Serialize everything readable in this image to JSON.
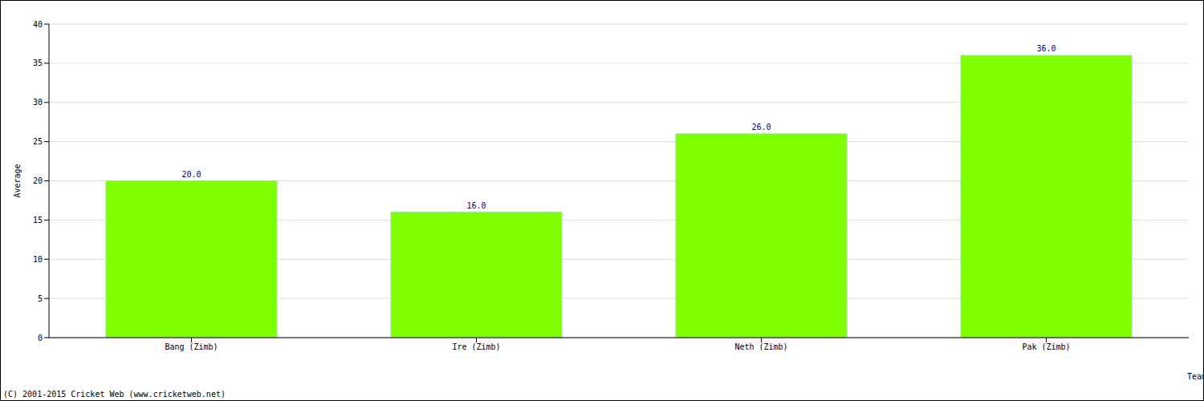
{
  "chart_data": {
    "type": "bar",
    "categories": [
      "Bang (Zimb)",
      "Ire (Zimb)",
      "Neth (Zimb)",
      "Pak (Zimb)"
    ],
    "values": [
      20,
      16,
      26,
      36
    ],
    "value_labels": [
      "20.0",
      "16.0",
      "26.0",
      "36.0"
    ],
    "data_labels": true,
    "color": "#80ff00",
    "ylim": [
      0,
      40
    ],
    "yticks": [
      0,
      5,
      10,
      15,
      20,
      25,
      30,
      35,
      40
    ],
    "grid": true,
    "x_label": "Team",
    "y_label": "Average",
    "annotations": [
      "(C) 2001-2015 Cricket Web (www.cricketweb.net)"
    ]
  }
}
